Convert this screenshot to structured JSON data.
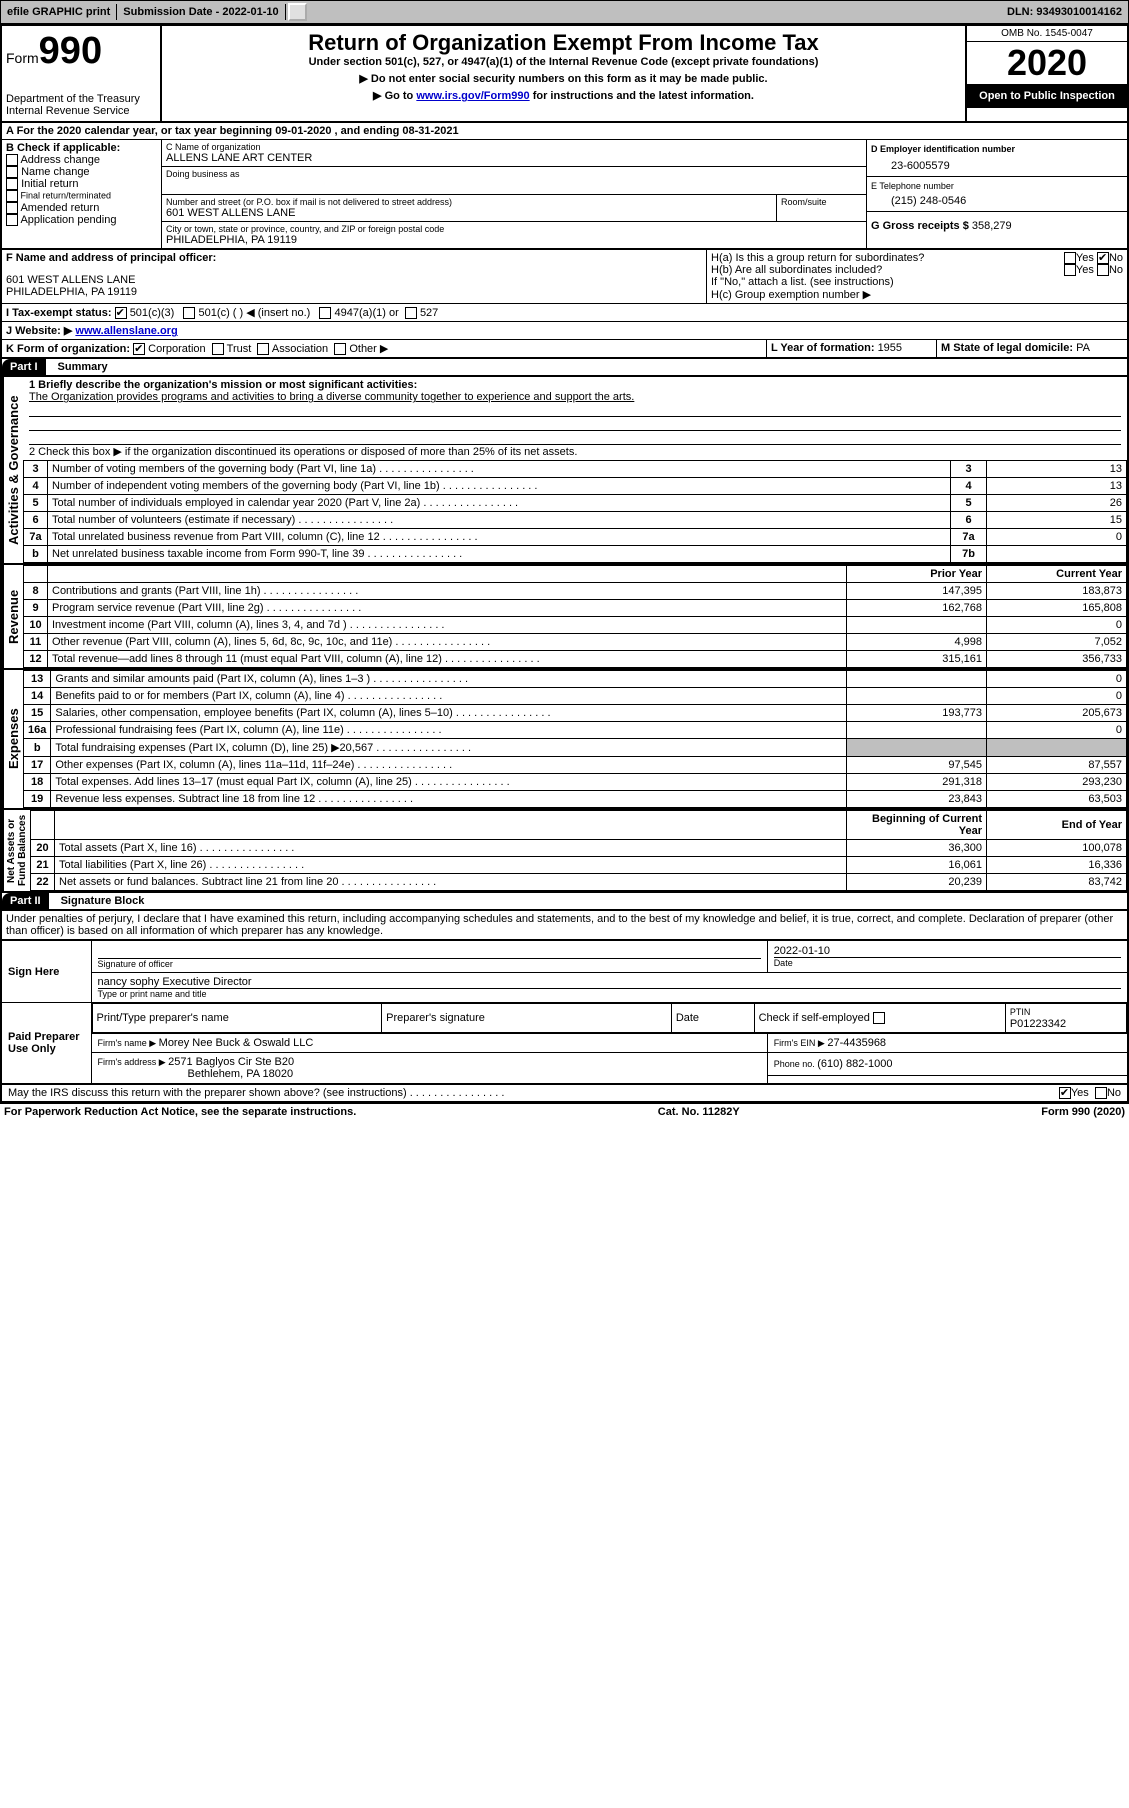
{
  "topbar": {
    "efile": "efile GRAPHIC print",
    "sub_label": "Submission Date - ",
    "sub_date": "2022-01-10",
    "dln_label": "DLN: ",
    "dln": "93493010014162"
  },
  "header": {
    "form_word": "Form",
    "form_num": "990",
    "dept": "Department of the Treasury\nInternal Revenue Service",
    "title": "Return of Organization Exempt From Income Tax",
    "subtitle": "Under section 501(c), 527, or 4947(a)(1) of the Internal Revenue Code (except private foundations)",
    "note1": "▶ Do not enter social security numbers on this form as it may be made public.",
    "note2_pre": "▶ Go to ",
    "note2_link": "www.irs.gov/Form990",
    "note2_post": " for instructions and the latest information.",
    "omb": "OMB No. 1545-0047",
    "year": "2020",
    "open": "Open to Public Inspection"
  },
  "lineA": "A For the 2020 calendar year, or tax year beginning 09-01-2020    , and ending 08-31-2021",
  "boxB": {
    "label": "B Check if applicable:",
    "items": [
      "Address change",
      "Name change",
      "Initial return",
      "Final return/terminated",
      "Amended return",
      "Application pending"
    ]
  },
  "boxC": {
    "name_lbl": "C Name of organization",
    "name": "ALLENS LANE ART CENTER",
    "dba_lbl": "Doing business as",
    "addr_lbl": "Number and street (or P.O. box if mail is not delivered to street address)",
    "room_lbl": "Room/suite",
    "addr": "601 WEST ALLENS LANE",
    "city_lbl": "City or town, state or province, country, and ZIP or foreign postal code",
    "city": "PHILADELPHIA, PA  19119"
  },
  "boxD": {
    "lbl": "D Employer identification number",
    "val": "23-6005579"
  },
  "boxE": {
    "lbl": "E Telephone number",
    "val": "(215) 248-0546"
  },
  "boxG": {
    "lbl": "G Gross receipts $ ",
    "val": "358,279"
  },
  "boxF": {
    "lbl": "F  Name and address of principal officer:",
    "addr1": "601 WEST ALLENS LANE",
    "addr2": "PHILADELPHIA, PA  19119"
  },
  "boxH": {
    "a": "H(a)  Is this a group return for subordinates?",
    "b": "H(b)  Are all subordinates included?",
    "note": "If \"No,\" attach a list. (see instructions)",
    "c": "H(c)  Group exemption number ▶"
  },
  "boxI": {
    "lbl": "I   Tax-exempt status:",
    "o1": "501(c)(3)",
    "o2": "501(c) (   ) ◀ (insert no.)",
    "o3": "4947(a)(1) or",
    "o4": "527"
  },
  "boxJ": {
    "lbl": "J   Website: ▶ ",
    "val": "www.allenslane.org"
  },
  "boxK": "K Form of organization:",
  "boxK_opts": [
    "Corporation",
    "Trust",
    "Association",
    "Other ▶"
  ],
  "boxL": {
    "lbl": "L Year of formation: ",
    "val": "1955"
  },
  "boxM": {
    "lbl": "M State of legal domicile: ",
    "val": "PA"
  },
  "part1": {
    "hdr": "Part I",
    "title": "Summary",
    "q1_lbl": "1  Briefly describe the organization's mission or most significant activities:",
    "q1_val": "The Organization provides programs and activities to bring a diverse community together to experience and support the arts.",
    "q2": "2   Check this box ▶        if the organization discontinued its operations or disposed of more than 25% of its net assets.",
    "gov": [
      {
        "n": "3",
        "t": "Number of voting members of the governing body (Part VI, line 1a)",
        "l": "3",
        "v": "13"
      },
      {
        "n": "4",
        "t": "Number of independent voting members of the governing body (Part VI, line 1b)",
        "l": "4",
        "v": "13"
      },
      {
        "n": "5",
        "t": "Total number of individuals employed in calendar year 2020 (Part V, line 2a)",
        "l": "5",
        "v": "26"
      },
      {
        "n": "6",
        "t": "Total number of volunteers (estimate if necessary)",
        "l": "6",
        "v": "15"
      },
      {
        "n": "7a",
        "t": "Total unrelated business revenue from Part VIII, column (C), line 12",
        "l": "7a",
        "v": "0"
      },
      {
        "n": "b",
        "t": "Net unrelated business taxable income from Form 990-T, line 39",
        "l": "7b",
        "v": ""
      }
    ],
    "col_py": "Prior Year",
    "col_cy": "Current Year",
    "rev": [
      {
        "n": "8",
        "t": "Contributions and grants (Part VIII, line 1h)",
        "p": "147,395",
        "c": "183,873"
      },
      {
        "n": "9",
        "t": "Program service revenue (Part VIII, line 2g)",
        "p": "162,768",
        "c": "165,808"
      },
      {
        "n": "10",
        "t": "Investment income (Part VIII, column (A), lines 3, 4, and 7d )",
        "p": "",
        "c": "0"
      },
      {
        "n": "11",
        "t": "Other revenue (Part VIII, column (A), lines 5, 6d, 8c, 9c, 10c, and 11e)",
        "p": "4,998",
        "c": "7,052"
      },
      {
        "n": "12",
        "t": "Total revenue—add lines 8 through 11 (must equal Part VIII, column (A), line 12)",
        "p": "315,161",
        "c": "356,733"
      }
    ],
    "exp": [
      {
        "n": "13",
        "t": "Grants and similar amounts paid (Part IX, column (A), lines 1–3 )",
        "p": "",
        "c": "0"
      },
      {
        "n": "14",
        "t": "Benefits paid to or for members (Part IX, column (A), line 4)",
        "p": "",
        "c": "0"
      },
      {
        "n": "15",
        "t": "Salaries, other compensation, employee benefits (Part IX, column (A), lines 5–10)",
        "p": "193,773",
        "c": "205,673"
      },
      {
        "n": "16a",
        "t": "Professional fundraising fees (Part IX, column (A), line 11e)",
        "p": "",
        "c": "0"
      },
      {
        "n": "b",
        "t": "Total fundraising expenses (Part IX, column (D), line 25) ▶20,567",
        "p": "—shade—",
        "c": "—shade—"
      },
      {
        "n": "17",
        "t": "Other expenses (Part IX, column (A), lines 11a–11d, 11f–24e)",
        "p": "97,545",
        "c": "87,557"
      },
      {
        "n": "18",
        "t": "Total expenses. Add lines 13–17 (must equal Part IX, column (A), line 25)",
        "p": "291,318",
        "c": "293,230"
      },
      {
        "n": "19",
        "t": "Revenue less expenses. Subtract line 18 from line 12",
        "p": "23,843",
        "c": "63,503"
      }
    ],
    "col_by": "Beginning of Current Year",
    "col_ey": "End of Year",
    "net": [
      {
        "n": "20",
        "t": "Total assets (Part X, line 16)",
        "p": "36,300",
        "c": "100,078"
      },
      {
        "n": "21",
        "t": "Total liabilities (Part X, line 26)",
        "p": "16,061",
        "c": "16,336"
      },
      {
        "n": "22",
        "t": "Net assets or fund balances. Subtract line 21 from line 20",
        "p": "20,239",
        "c": "83,742"
      }
    ]
  },
  "part2": {
    "hdr": "Part II",
    "title": "Signature Block",
    "decl": "Under penalties of perjury, I declare that I have examined this return, including accompanying schedules and statements, and to the best of my knowledge and belief, it is true, correct, and complete. Declaration of preparer (other than officer) is based on all information of which preparer has any knowledge.",
    "sign_here": "Sign Here",
    "sig_officer": "Signature of officer",
    "sig_date": "2022-01-10",
    "date_lbl": "Date",
    "name_title": "nancy sophy  Executive Director",
    "type_lbl": "Type or print name and title",
    "paid": "Paid Preparer Use Only",
    "pp_name_lbl": "Print/Type preparer's name",
    "pp_sig_lbl": "Preparer's signature",
    "pp_date_lbl": "Date",
    "pp_check": "Check        if self-employed",
    "ptin_lbl": "PTIN",
    "ptin": "P01223342",
    "firm_name_lbl": "Firm's name     ▶ ",
    "firm_name": "Morey Nee Buck & Oswald LLC",
    "firm_ein_lbl": "Firm's EIN ▶ ",
    "firm_ein": "27-4435968",
    "firm_addr_lbl": "Firm's address ▶ ",
    "firm_addr1": "2571 Baglyos Cir Ste B20",
    "firm_addr2": "Bethlehem, PA  18020",
    "phone_lbl": "Phone no. ",
    "phone": "(610) 882-1000",
    "discuss": "May the IRS discuss this return with the preparer shown above? (see instructions)"
  },
  "footer": {
    "left": "For Paperwork Reduction Act Notice, see the separate instructions.",
    "mid": "Cat. No. 11282Y",
    "right": "Form 990 (2020)"
  },
  "labels": {
    "yes": "Yes",
    "no": "No"
  }
}
